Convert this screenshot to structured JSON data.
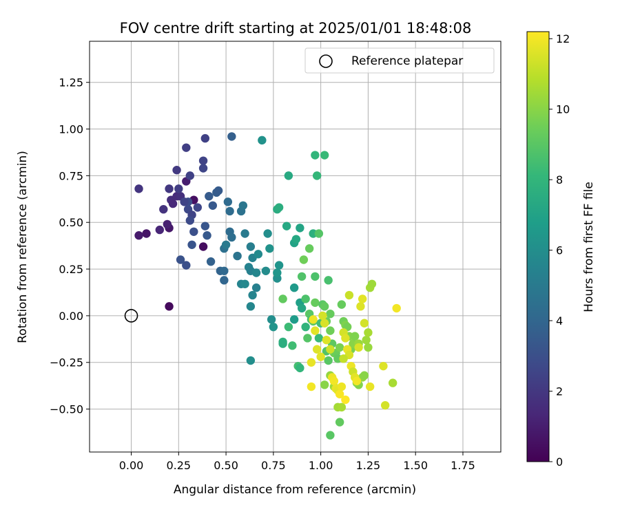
{
  "chart_data": {
    "type": "scatter",
    "title": "FOV centre drift starting at 2025/01/01 18:48:08",
    "xlabel": "Angular distance from reference (arcmin)",
    "ylabel": "Rotation from reference (arcmin)",
    "xlim": [
      -0.22,
      1.95
    ],
    "ylim": [
      -0.73,
      1.47
    ],
    "xticks": [
      0.0,
      0.25,
      0.5,
      0.75,
      1.0,
      1.25,
      1.5,
      1.75
    ],
    "xtick_labels": [
      "0.00",
      "0.25",
      "0.50",
      "0.75",
      "1.00",
      "1.25",
      "1.50",
      "1.75"
    ],
    "yticks": [
      -0.5,
      -0.25,
      0.0,
      0.25,
      0.5,
      0.75,
      1.0,
      1.25
    ],
    "ytick_labels": [
      "−0.50",
      "−0.25",
      "0.00",
      "0.25",
      "0.50",
      "0.75",
      "1.00",
      "1.25"
    ],
    "grid": true,
    "legend": {
      "placement": "top-right",
      "entries": [
        "Reference platepar"
      ]
    },
    "reference_point": {
      "x": 0.0,
      "y": 0.0,
      "name": "Reference platepar"
    },
    "colorbar": {
      "label": "Hours from first FF file",
      "colormap": "viridis",
      "range": [
        0,
        12.2
      ],
      "ticks": [
        0,
        2,
        4,
        6,
        8,
        10,
        12
      ],
      "tick_labels": [
        "0",
        "2",
        "4",
        "6",
        "8",
        "10",
        "12"
      ]
    },
    "viridis_stops": [
      "#440154",
      "#482878",
      "#3e4989",
      "#31688e",
      "#26828e",
      "#1f9e89",
      "#35b779",
      "#6ece58",
      "#b5de2b",
      "#fde725"
    ],
    "points": [
      [
        0.2,
        0.05,
        0.3
      ],
      [
        0.08,
        0.44,
        0.7
      ],
      [
        0.04,
        0.43,
        0.9
      ],
      [
        0.38,
        0.37,
        0.4
      ],
      [
        0.33,
        0.62,
        0.5
      ],
      [
        0.2,
        0.47,
        0.8
      ],
      [
        0.19,
        0.49,
        1.1
      ],
      [
        0.15,
        0.46,
        1.3
      ],
      [
        0.29,
        0.72,
        1.0
      ],
      [
        0.21,
        0.62,
        1.6
      ],
      [
        0.24,
        0.64,
        1.5
      ],
      [
        0.22,
        0.6,
        1.4
      ],
      [
        0.26,
        0.64,
        1.7
      ],
      [
        0.17,
        0.57,
        1.8
      ],
      [
        0.04,
        0.68,
        1.9
      ],
      [
        0.2,
        0.68,
        2.0
      ],
      [
        0.24,
        0.78,
        2.1
      ],
      [
        0.25,
        0.68,
        2.2
      ],
      [
        0.29,
        0.9,
        2.3
      ],
      [
        0.39,
        0.95,
        2.4
      ],
      [
        0.38,
        0.83,
        2.5
      ],
      [
        0.38,
        0.79,
        2.6
      ],
      [
        0.31,
        0.75,
        2.4
      ],
      [
        0.3,
        0.57,
        2.7
      ],
      [
        0.32,
        0.54,
        2.5
      ],
      [
        0.31,
        0.51,
        2.8
      ],
      [
        0.35,
        0.58,
        2.6
      ],
      [
        0.3,
        0.61,
        2.9
      ],
      [
        0.28,
        0.61,
        2.5
      ],
      [
        0.33,
        0.45,
        3.0
      ],
      [
        0.26,
        0.3,
        3.1
      ],
      [
        0.29,
        0.27,
        3.0
      ],
      [
        0.32,
        0.38,
        3.2
      ],
      [
        0.39,
        0.48,
        3.3
      ],
      [
        0.4,
        0.43,
        3.4
      ],
      [
        0.41,
        0.64,
        3.5
      ],
      [
        0.43,
        0.59,
        3.4
      ],
      [
        0.45,
        0.66,
        3.6
      ],
      [
        0.46,
        0.67,
        3.5
      ],
      [
        0.53,
        0.96,
        3.7
      ],
      [
        0.42,
        0.29,
        3.8
      ],
      [
        0.47,
        0.24,
        3.9
      ],
      [
        0.49,
        0.19,
        4.0
      ],
      [
        0.49,
        0.24,
        4.1
      ],
      [
        0.51,
        0.61,
        4.2
      ],
      [
        0.52,
        0.56,
        4.3
      ],
      [
        0.52,
        0.45,
        4.3
      ],
      [
        0.53,
        0.42,
        4.4
      ],
      [
        0.49,
        0.36,
        4.5
      ],
      [
        0.5,
        0.38,
        5.0
      ],
      [
        0.56,
        0.32,
        4.7
      ],
      [
        0.58,
        0.56,
        4.6
      ],
      [
        0.59,
        0.59,
        4.8
      ],
      [
        0.6,
        0.44,
        5.0
      ],
      [
        0.58,
        0.17,
        5.5
      ],
      [
        0.6,
        0.17,
        5.7
      ],
      [
        0.62,
        0.26,
        5.4
      ],
      [
        0.63,
        0.24,
        5.3
      ],
      [
        0.63,
        0.37,
        5.2
      ],
      [
        0.64,
        0.31,
        5.4
      ],
      [
        0.63,
        0.05,
        5.6
      ],
      [
        0.64,
        0.11,
        5.5
      ],
      [
        0.66,
        0.15,
        5.3
      ],
      [
        0.66,
        0.23,
        5.6
      ],
      [
        0.67,
        0.33,
        5.8
      ],
      [
        0.69,
        0.94,
        6.2
      ],
      [
        0.71,
        0.24,
        5.9
      ],
      [
        0.72,
        0.44,
        6.0
      ],
      [
        0.73,
        0.36,
        6.2
      ],
      [
        0.74,
        -0.02,
        6.0
      ],
      [
        0.75,
        -0.06,
        6.3
      ],
      [
        0.77,
        0.2,
        6.1
      ],
      [
        0.77,
        0.23,
        6.4
      ],
      [
        0.78,
        0.27,
        6.3
      ],
      [
        0.63,
        -0.24,
        6.0
      ],
      [
        0.77,
        0.57,
        7.5
      ],
      [
        0.78,
        0.58,
        7.6
      ],
      [
        0.82,
        0.48,
        7.3
      ],
      [
        0.83,
        0.75,
        7.4
      ],
      [
        0.86,
        0.39,
        7.0
      ],
      [
        0.87,
        0.41,
        7.3
      ],
      [
        0.86,
        0.15,
        6.6
      ],
      [
        0.86,
        -0.02,
        6.7
      ],
      [
        0.89,
        0.47,
        7.1
      ],
      [
        0.89,
        0.07,
        6.9
      ],
      [
        0.9,
        0.04,
        7.2
      ],
      [
        0.96,
        0.44,
        7.7
      ],
      [
        0.97,
        0.86,
        8.0
      ],
      [
        1.02,
        0.86,
        8.2
      ],
      [
        0.98,
        0.75,
        8.1
      ],
      [
        0.99,
        0.44,
        8.9
      ],
      [
        0.94,
        0.36,
        9.3
      ],
      [
        0.91,
        0.3,
        9.5
      ],
      [
        0.9,
        0.21,
        8.8
      ],
      [
        0.97,
        0.21,
        8.7
      ],
      [
        1.04,
        0.19,
        8.6
      ],
      [
        0.8,
        0.09,
        9.2
      ],
      [
        0.8,
        -0.14,
        7.8
      ],
      [
        0.8,
        -0.15,
        7.6
      ],
      [
        0.83,
        -0.06,
        8.3
      ],
      [
        0.85,
        -0.16,
        8.4
      ],
      [
        0.88,
        -0.27,
        8.5
      ],
      [
        0.89,
        -0.28,
        8.0
      ],
      [
        0.92,
        -0.06,
        7.9
      ],
      [
        0.92,
        0.09,
        8.7
      ],
      [
        0.93,
        -0.12,
        8.9
      ],
      [
        0.94,
        0.01,
        9.0
      ],
      [
        0.95,
        -0.02,
        8.6
      ],
      [
        0.96,
        -0.03,
        9.1
      ],
      [
        0.97,
        0.07,
        9.3
      ],
      [
        0.99,
        -0.12,
        8.2
      ],
      [
        1.0,
        -0.04,
        8.5
      ],
      [
        1.01,
        0.06,
        9.0
      ],
      [
        1.02,
        0.05,
        9.2
      ],
      [
        1.03,
        -0.03,
        9.4
      ],
      [
        1.03,
        -0.19,
        8.8
      ],
      [
        1.04,
        -0.24,
        9.0
      ],
      [
        1.05,
        0.01,
        9.3
      ],
      [
        1.05,
        -0.08,
        9.5
      ],
      [
        1.06,
        -0.15,
        9.1
      ],
      [
        1.07,
        -0.2,
        9.6
      ],
      [
        1.08,
        -0.2,
        9.4
      ],
      [
        1.09,
        -0.23,
        9.2
      ],
      [
        1.1,
        -0.17,
        9.7
      ],
      [
        1.11,
        0.06,
        9.3
      ],
      [
        1.12,
        -0.03,
        9.5
      ],
      [
        1.13,
        -0.05,
        9.8
      ],
      [
        1.14,
        -0.06,
        9.6
      ],
      [
        1.15,
        -0.11,
        9.9
      ],
      [
        1.16,
        -0.18,
        9.7
      ],
      [
        1.17,
        -0.15,
        10.0
      ],
      [
        1.18,
        -0.11,
        9.8
      ],
      [
        1.19,
        -0.36,
        10.1
      ],
      [
        1.2,
        -0.37,
        9.9
      ],
      [
        1.22,
        -0.33,
        10.2
      ],
      [
        1.23,
        -0.32,
        10.0
      ],
      [
        1.24,
        -0.13,
        10.4
      ],
      [
        1.25,
        -0.17,
        10.3
      ],
      [
        1.26,
        0.15,
        10.5
      ],
      [
        1.27,
        0.17,
        10.4
      ],
      [
        1.25,
        -0.09,
        10.6
      ],
      [
        1.2,
        -0.15,
        10.3
      ],
      [
        1.02,
        -0.37,
        10.0
      ],
      [
        1.05,
        -0.32,
        10.2
      ],
      [
        1.07,
        -0.38,
        10.4
      ],
      [
        1.09,
        -0.49,
        10.5
      ],
      [
        1.11,
        -0.49,
        10.6
      ],
      [
        1.1,
        -0.57,
        9.2
      ],
      [
        1.05,
        -0.64,
        9.0
      ],
      [
        1.38,
        -0.36,
        10.6
      ],
      [
        0.95,
        -0.25,
        11.8
      ],
      [
        0.96,
        -0.02,
        11.9
      ],
      [
        0.95,
        -0.38,
        12.0
      ],
      [
        0.97,
        -0.08,
        11.7
      ],
      [
        0.98,
        -0.18,
        11.6
      ],
      [
        1.0,
        -0.22,
        11.7
      ],
      [
        1.01,
        0.0,
        11.4
      ],
      [
        1.02,
        -0.04,
        11.5
      ],
      [
        1.03,
        -0.13,
        11.6
      ],
      [
        1.05,
        -0.18,
        11.3
      ],
      [
        1.06,
        -0.33,
        11.9
      ],
      [
        1.07,
        -0.35,
        12.0
      ],
      [
        1.08,
        -0.39,
        11.8
      ],
      [
        1.09,
        -0.4,
        11.7
      ],
      [
        1.1,
        -0.42,
        12.1
      ],
      [
        1.11,
        -0.38,
        11.9
      ],
      [
        1.12,
        -0.09,
        11.4
      ],
      [
        1.13,
        -0.12,
        11.6
      ],
      [
        1.14,
        -0.18,
        11.8
      ],
      [
        1.15,
        -0.21,
        11.5
      ],
      [
        1.16,
        -0.27,
        11.9
      ],
      [
        1.17,
        -0.3,
        11.3
      ],
      [
        1.18,
        -0.33,
        11.7
      ],
      [
        1.19,
        -0.35,
        12.0
      ],
      [
        1.2,
        -0.17,
        11.5
      ],
      [
        1.21,
        0.05,
        11.6
      ],
      [
        1.22,
        0.09,
        11.7
      ],
      [
        1.15,
        0.11,
        11.2
      ],
      [
        1.23,
        -0.04,
        11.4
      ],
      [
        1.26,
        -0.38,
        11.8
      ],
      [
        1.33,
        -0.27,
        11.6
      ],
      [
        1.34,
        -0.48,
        11.4
      ],
      [
        1.4,
        0.04,
        12.0
      ],
      [
        1.12,
        -0.23,
        11.1
      ],
      [
        1.13,
        -0.45,
        12.2
      ]
    ]
  }
}
